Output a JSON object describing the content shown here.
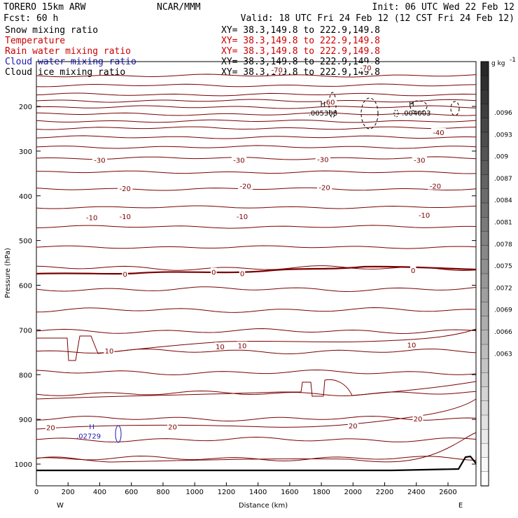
{
  "header": {
    "model": "TORERO  15km ARW",
    "center": "NCAR/MMM",
    "init": "Init: 06 UTC Wed 22 Feb 12",
    "fcst": "Fcst:    60 h",
    "valid": "Valid: 18 UTC Fri 24 Feb 12 (12 CST Fri 24 Feb 12)",
    "fields": [
      {
        "name": "Snow mixing ratio",
        "xy": "XY=  38.3,149.8 to 222.9,149.8",
        "color": "#000000",
        "xycolor": "#000000"
      },
      {
        "name": "Temperature",
        "xy": "XY=  38.3,149.8 to 222.9,149.8",
        "color": "#cc0000",
        "xycolor": "#cc0000"
      },
      {
        "name": "Rain water mixing ratio",
        "xy": "XY=  38.3,149.8 to 222.9,149.8",
        "color": "#cc0000",
        "xycolor": "#cc0000"
      },
      {
        "name": "Cloud water mixing ratio",
        "xy": "XY=  38.3,149.8 to 222.9,149.8",
        "color": "#1a1ab0",
        "xycolor": "#000000"
      },
      {
        "name": "Cloud ice mixing ratio",
        "xy": "XY=  38.3,149.8 to 222.9,149.8",
        "color": "#000000",
        "xycolor": "#000000"
      }
    ]
  },
  "chart_data": {
    "type": "contour-cross-section",
    "xlabel": "Distance (km)",
    "ylabel": "Pressure (hPa)",
    "xlim": [
      0,
      2760
    ],
    "xticks": [
      "0",
      "200",
      "400",
      "600",
      "800",
      "1000",
      "1200",
      "1400",
      "1600",
      "1800",
      "2000",
      "2200",
      "2400",
      "2600"
    ],
    "xtick_values": [
      0,
      200,
      400,
      600,
      800,
      1000,
      1200,
      1400,
      1600,
      1800,
      2000,
      2200,
      2400,
      2600
    ],
    "ylim": [
      100,
      1050
    ],
    "yticks": [
      "200",
      "300",
      "400",
      "500",
      "600",
      "700",
      "800",
      "900",
      "1000"
    ],
    "ytick_values": [
      200,
      300,
      400,
      500,
      600,
      700,
      800,
      900,
      1000
    ],
    "x_endpoints": {
      "left": "W",
      "right": "E"
    },
    "colorbar": {
      "unit": "g kg",
      "unit_exp": "-1",
      "labels": [
        ".0096",
        ".0093",
        ".009",
        ".0087",
        ".0084",
        ".0081",
        ".0078",
        ".0075",
        ".0072",
        ".0069",
        ".0066",
        ".0063"
      ]
    },
    "temperature_labels": [
      {
        "text": "-70",
        "x": 1520,
        "p": 118
      },
      {
        "text": "-70",
        "x": 2080,
        "p": 113
      },
      {
        "text": "-60",
        "x": 1850,
        "p": 190
      },
      {
        "text": "-40",
        "x": 2540,
        "p": 258
      },
      {
        "text": "-30",
        "x": 400,
        "p": 320
      },
      {
        "text": "-30",
        "x": 1280,
        "p": 320
      },
      {
        "text": "-30",
        "x": 1810,
        "p": 318
      },
      {
        "text": "-30",
        "x": 2420,
        "p": 320
      },
      {
        "text": "-20",
        "x": 560,
        "p": 383
      },
      {
        "text": "-20",
        "x": 1320,
        "p": 378
      },
      {
        "text": "-20",
        "x": 1820,
        "p": 381
      },
      {
        "text": "-20",
        "x": 2520,
        "p": 378
      },
      {
        "text": "-10",
        "x": 350,
        "p": 448
      },
      {
        "text": "-10",
        "x": 560,
        "p": 446
      },
      {
        "text": "-10",
        "x": 1300,
        "p": 446
      },
      {
        "text": "-10",
        "x": 2450,
        "p": 443
      },
      {
        "text": "0",
        "x": 560,
        "p": 575
      },
      {
        "text": "0",
        "x": 1120,
        "p": 570
      },
      {
        "text": "0",
        "x": 1300,
        "p": 573
      },
      {
        "text": "0",
        "x": 2380,
        "p": 566
      },
      {
        "text": "10",
        "x": 460,
        "p": 746
      },
      {
        "text": "10",
        "x": 1160,
        "p": 737
      },
      {
        "text": "10",
        "x": 1300,
        "p": 735
      },
      {
        "text": "10",
        "x": 2370,
        "p": 733
      },
      {
        "text": "20",
        "x": 90,
        "p": 918
      },
      {
        "text": "20",
        "x": 860,
        "p": 916
      },
      {
        "text": "20",
        "x": 2000,
        "p": 914
      },
      {
        "text": "20",
        "x": 2410,
        "p": 898
      }
    ],
    "extrema": [
      {
        "text": "H",
        "x": 1810,
        "p": 200,
        "color": "#000000"
      },
      {
        "text": ".005308",
        "x": 1810,
        "p": 220,
        "color": "#000000"
      },
      {
        "text": "H",
        "x": 2370,
        "p": 200,
        "color": "#000000"
      },
      {
        "text": ".004003",
        "x": 2400,
        "p": 220,
        "color": "#000000"
      },
      {
        "text": "H",
        "x": 350,
        "p": 922,
        "color": "#1a1ab0"
      },
      {
        "text": ".02729",
        "x": 330,
        "p": 943,
        "color": "#1a1ab0"
      }
    ]
  }
}
